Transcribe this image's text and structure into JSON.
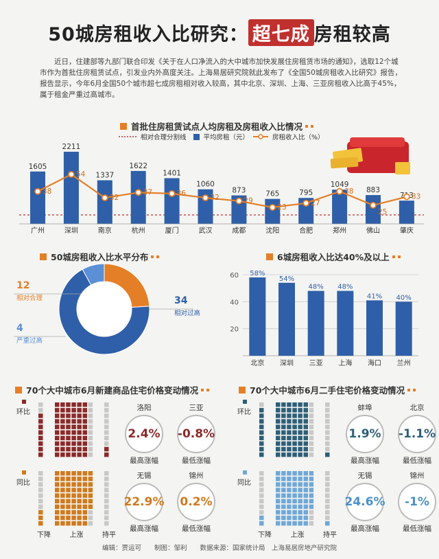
{
  "title": {
    "pre": "50城房租收入比研究：",
    "highlight": "超七成",
    "post": "房租较高"
  },
  "intro": "近日，住建部等九部门联合印发《关于在人口净流入的大中城市加快发展住房租赁市场的通知》，选取12个城市作为首批住房租赁试点，引发业内外高度关注。上海易居研究院就此发布了《全国50城房租收入比研究》报告，报告显示，今年6月全国50个城市超七成房租相对收入较高，其中北京、深圳、上海、三亚房租收入比高于45%，属于租金严重过高城市。",
  "chart1": {
    "title": "首批住房租赁试点人均房租及房租收入比情况",
    "legend": {
      "threshold": "相对合理分割线",
      "rent": "平均房租（元）",
      "ratio": "房租收入比（%）"
    },
    "colors": {
      "bar": "#2f5fa8",
      "line": "#e57f27",
      "threshold": "#c0302e"
    }
  },
  "chart2": {
    "title": "50城房租收入比水平分布",
    "colors": {
      "reasonable": "#e57f27",
      "high": "#2f5fa8",
      "severe": "#5b8fd6"
    }
  },
  "chart3": {
    "title": "6城房租收入比达40%及以上",
    "color": "#2f5fa8"
  },
  "panel_new": {
    "title": "70个大中城市6月新建商品住宅价格变动情况",
    "row1_label": "环比",
    "row2_label": "同比",
    "axis": {
      "down": "下降",
      "up": "上涨",
      "flat": "持平"
    },
    "colors": {
      "mom": "#8b2a2a",
      "yoy": "#d07a1e",
      "grey": "#c8c8c8"
    },
    "stats": [
      {
        "city": "洛阳",
        "value": "2.4%",
        "label": "最高涨幅"
      },
      {
        "city": "三亚",
        "value": "-0.8%",
        "label": "最低涨幅"
      },
      {
        "city": "无锡",
        "value": "22.9%",
        "label": "最高涨幅"
      },
      {
        "city": "锦州",
        "value": "0.2%",
        "label": "最低涨幅"
      }
    ]
  },
  "panel_second": {
    "title": "70个大中城市6月二手住宅价格变动情况",
    "row1_label": "环比",
    "row2_label": "同比",
    "axis": {
      "down": "下降",
      "up": "上涨",
      "flat": "持平"
    },
    "colors": {
      "mom": "#2e5f78",
      "yoy": "#6fa8d8",
      "grey": "#c8c8c8"
    },
    "stats": [
      {
        "city": "蚌埠",
        "value": "1.9%",
        "label": "最高涨幅"
      },
      {
        "city": "北京",
        "value": "-1.1%",
        "label": "最低涨幅"
      },
      {
        "city": "无锡",
        "value": "24.6%",
        "label": "最高涨幅"
      },
      {
        "city": "锦州",
        "value": "-1%",
        "label": "最低涨幅"
      }
    ]
  },
  "footer": "编辑：贾运可　　制图：邹利　　数据来源：国家统计局　上海易居房地产研究院",
  "chart_data": [
    {
      "type": "bar",
      "title": "首批住房租赁试点人均房租及房租收入比情况",
      "categories": [
        "广州",
        "深圳",
        "南京",
        "杭州",
        "厦门",
        "武汉",
        "成都",
        "沈阳",
        "合肥",
        "郑州",
        "佛山",
        "肇庆"
      ],
      "series": [
        {
          "name": "平均房租（元）",
          "values": [
            1605,
            2211,
            1337,
            1622,
            1401,
            1060,
            873,
            765,
            795,
            1049,
            883,
            713
          ]
        },
        {
          "name": "房租收入比（%）",
          "type": "line",
          "values": [
            38,
            54,
            32,
            37,
            36,
            32,
            29,
            23,
            27,
            38,
            25,
            33
          ]
        }
      ],
      "threshold_label": "相对合理分割线",
      "grid": false
    },
    {
      "type": "pie",
      "title": "50城房租收入比水平分布",
      "categories": [
        "相对合理",
        "相对过高",
        "严重过高"
      ],
      "values": [
        12,
        34,
        4
      ]
    },
    {
      "type": "bar",
      "title": "6城房租收入比达40%及以上",
      "categories": [
        "北京",
        "深圳",
        "三亚",
        "上海",
        "海口",
        "兰州"
      ],
      "values": [
        58,
        54,
        48,
        48,
        41,
        40
      ],
      "value_labels": [
        "58%",
        "54%",
        "48%",
        "48%",
        "41%",
        "40%"
      ],
      "yticks": [
        20,
        40,
        60
      ],
      "ylim": [
        0,
        60
      ],
      "grid": true
    },
    {
      "type": "bar",
      "title": "70个大中城市6月新建商品住宅价格变动情况",
      "categories": [
        "下降",
        "上涨",
        "持平"
      ],
      "series": [
        {
          "name": "环比",
          "values": [
            8,
            60,
            2
          ]
        },
        {
          "name": "同比",
          "values": [
            3,
            67,
            0
          ]
        }
      ]
    },
    {
      "type": "bar",
      "title": "70个大中城市6月二手住宅价格变动情况",
      "categories": [
        "下降",
        "上涨",
        "持平"
      ],
      "series": [
        {
          "name": "环比",
          "values": [
            9,
            60,
            1
          ]
        },
        {
          "name": "同比",
          "values": [
            2,
            67,
            1
          ]
        }
      ]
    }
  ]
}
